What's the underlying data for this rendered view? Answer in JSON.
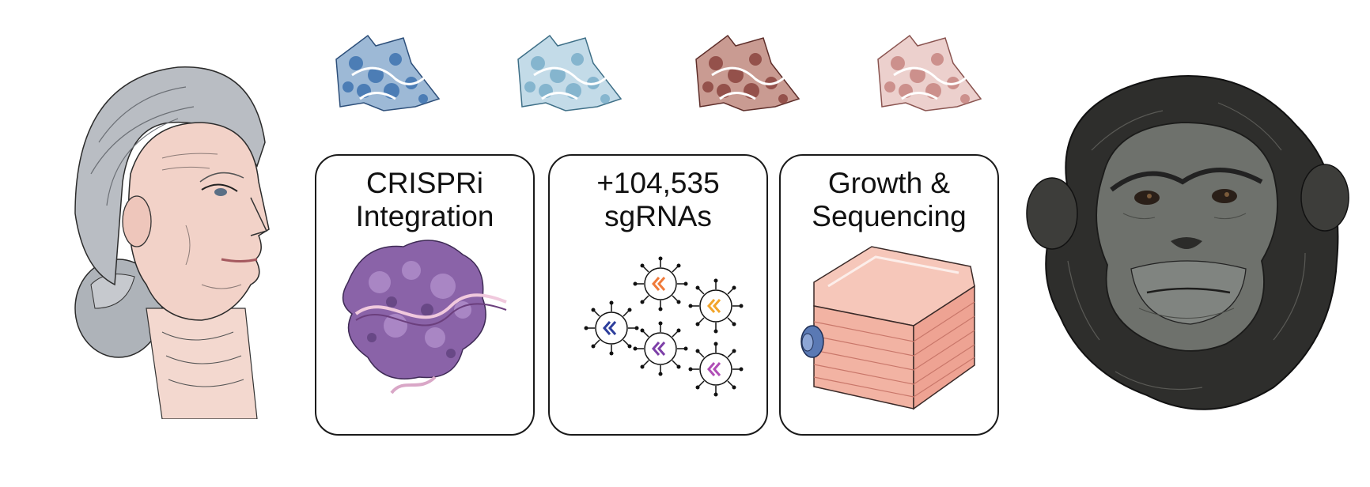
{
  "panels": [
    {
      "id": "crispri",
      "title_line1": "CRISPRi",
      "title_line2": "Integration",
      "icon": "protein-dna-complex-icon"
    },
    {
      "id": "sgrnas",
      "title_line1": "+104,535",
      "title_line2": "sgRNAs",
      "icon": "lentivirus-particles-icon"
    },
    {
      "id": "growth",
      "title_line1": "Growth &",
      "title_line2": "Sequencing",
      "icon": "cell-culture-flask-icon"
    }
  ],
  "cell_samples": [
    {
      "color": "#3f73b0",
      "light": "#9db9d6"
    },
    {
      "color": "#7fb1cc",
      "light": "#c3dbe8"
    },
    {
      "color": "#8f4a44",
      "light": "#c99b92"
    },
    {
      "color": "#c98a86",
      "light": "#ecd0cd"
    }
  ],
  "colors": {
    "human_hair": "#b8bcc2",
    "human_skin": "#f1cfc6",
    "chimp_fur": "#2e2e2c",
    "chimp_face": "#6e716c",
    "protein": "#8a63a8",
    "flask": "#f2b3a3",
    "flask_cap": "#5a79b4"
  }
}
